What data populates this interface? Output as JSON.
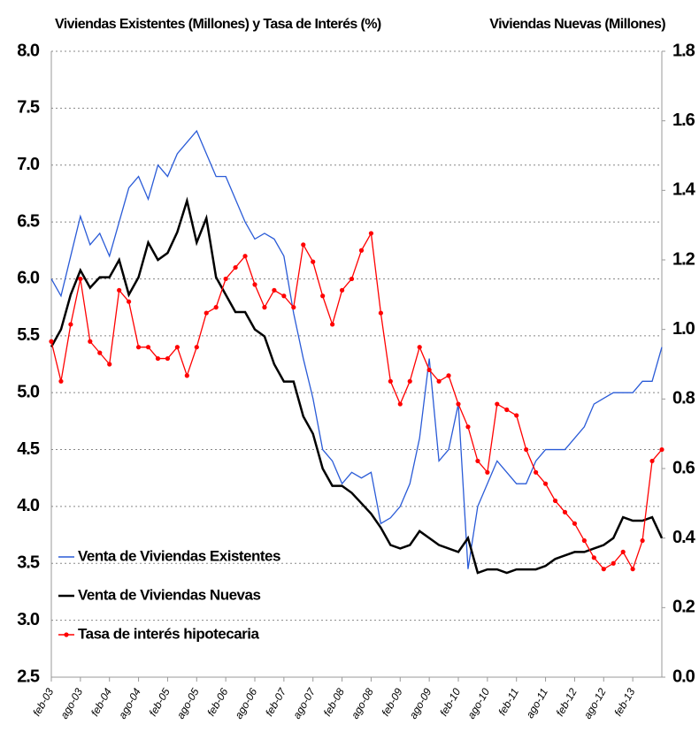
{
  "chart_data": {
    "type": "line",
    "y_title": "Viviendas Existentes (Millones) y Tasa de Interés (%)",
    "y2_title": "Viviendas Nuevas (Millones)",
    "categories": [
      "feb-03",
      null,
      null,
      "ago-03",
      null,
      null,
      "feb-04",
      null,
      null,
      "ago-04",
      null,
      null,
      "feb-05",
      null,
      null,
      "ago-05",
      null,
      null,
      "feb-06",
      null,
      null,
      "ago-06",
      null,
      null,
      "feb-07",
      null,
      null,
      "ago-07",
      null,
      null,
      "feb-08",
      null,
      null,
      "ago-08",
      null,
      null,
      "feb-09",
      null,
      null,
      "ago-09",
      null,
      null,
      "feb-10",
      null,
      null,
      "ago-10",
      null,
      null,
      "feb-11",
      null,
      null,
      "ago-11",
      null,
      null,
      "feb-12",
      null,
      null,
      "ago-12",
      null,
      null,
      "feb-13",
      null,
      null,
      null
    ],
    "series": [
      {
        "name": "Venta de Viviendas Existentes",
        "color": "#2a5bd7",
        "axis": "y",
        "values": [
          6.0,
          5.85,
          6.2,
          6.55,
          6.3,
          6.4,
          6.2,
          6.5,
          6.8,
          6.9,
          6.7,
          7.0,
          6.9,
          7.1,
          7.2,
          7.3,
          7.1,
          6.9,
          6.9,
          6.7,
          6.5,
          6.35,
          6.4,
          6.35,
          6.2,
          5.7,
          5.3,
          4.95,
          4.5,
          4.4,
          4.2,
          4.3,
          4.25,
          4.3,
          3.85,
          3.9,
          4.0,
          4.2,
          4.6,
          5.3,
          4.4,
          4.5,
          4.9,
          3.45,
          4.0,
          4.2,
          4.4,
          4.3,
          4.2,
          4.2,
          4.4,
          4.5,
          4.5,
          4.5,
          4.6,
          4.7,
          4.9,
          4.95,
          5.0,
          5.0,
          5.0,
          5.1,
          5.1,
          5.4
        ]
      },
      {
        "name": "Venta de Viviendas Nuevas",
        "color": "#000000",
        "axis": "y2",
        "values": [
          0.95,
          1.0,
          1.1,
          1.17,
          1.12,
          1.15,
          1.15,
          1.2,
          1.1,
          1.15,
          1.25,
          1.2,
          1.22,
          1.28,
          1.37,
          1.25,
          1.32,
          1.15,
          1.1,
          1.05,
          1.05,
          1.0,
          0.98,
          0.9,
          0.85,
          0.85,
          0.75,
          0.7,
          0.6,
          0.55,
          0.55,
          0.53,
          0.5,
          0.47,
          0.43,
          0.38,
          0.37,
          0.38,
          0.42,
          0.4,
          0.38,
          0.37,
          0.36,
          0.4,
          0.3,
          0.31,
          0.31,
          0.3,
          0.31,
          0.31,
          0.31,
          0.32,
          0.34,
          0.35,
          0.36,
          0.36,
          0.37,
          0.38,
          0.4,
          0.46,
          0.45,
          0.45,
          0.46,
          0.4
        ]
      },
      {
        "name": "Tasa de interés hipotecaria",
        "color": "#ff0000",
        "axis": "y",
        "markers": true,
        "values": [
          5.45,
          5.1,
          5.6,
          6.0,
          5.45,
          5.35,
          5.25,
          5.9,
          5.8,
          5.4,
          5.4,
          5.3,
          5.3,
          5.4,
          5.15,
          5.4,
          5.7,
          5.75,
          6.0,
          6.1,
          6.2,
          5.95,
          5.75,
          5.9,
          5.85,
          5.75,
          6.3,
          6.15,
          5.85,
          5.6,
          5.9,
          6.0,
          6.25,
          6.4,
          5.7,
          5.1,
          4.9,
          5.1,
          5.4,
          5.2,
          5.1,
          5.15,
          4.9,
          4.7,
          4.4,
          4.3,
          4.9,
          4.85,
          4.8,
          4.5,
          4.3,
          4.2,
          4.05,
          3.95,
          3.85,
          3.7,
          3.55,
          3.45,
          3.5,
          3.6,
          3.45,
          3.7,
          4.4,
          4.5
        ]
      }
    ],
    "ylim": [
      2.5,
      8.0
    ],
    "yticks": [
      {
        "value": 2.5,
        "label": "2.5"
      },
      {
        "value": 3,
        "label": "3.0"
      },
      3.5,
      {
        "value": 4,
        "label": "4.0"
      },
      4.5,
      {
        "value": 5,
        "label": "5.0"
      },
      5.5,
      {
        "value": 6,
        "label": "6.0"
      },
      6.5,
      {
        "value": 7,
        "label": "7.0"
      },
      7.5,
      {
        "value": 8,
        "label": "8.0"
      }
    ],
    "y2lim": [
      0,
      1.8
    ],
    "y2ticks": [
      {
        "value": 0,
        "label": "0.0"
      },
      0.2,
      0.4,
      0.6,
      0.8,
      {
        "value": 1,
        "label": "1.0"
      },
      1.2,
      1.4,
      1.6,
      1.8
    ],
    "grid": true,
    "legend": "lower left"
  }
}
